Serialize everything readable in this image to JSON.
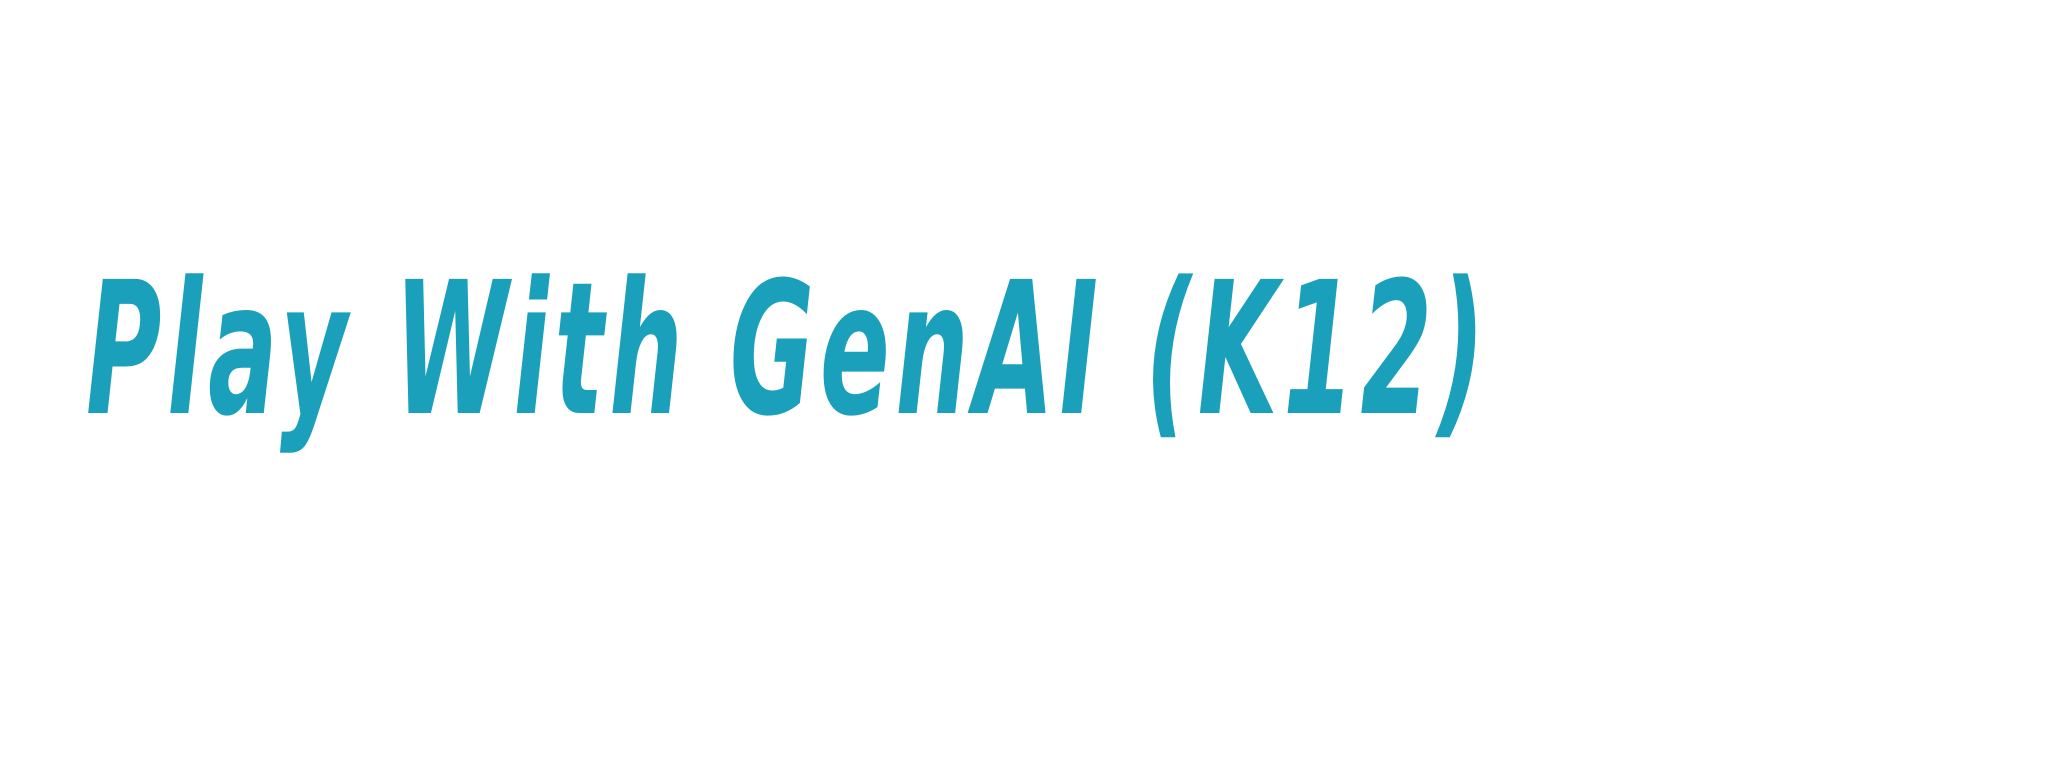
{
  "banner": {
    "title": "Play With GenAI (K12)",
    "color": "#1ba0bb"
  }
}
